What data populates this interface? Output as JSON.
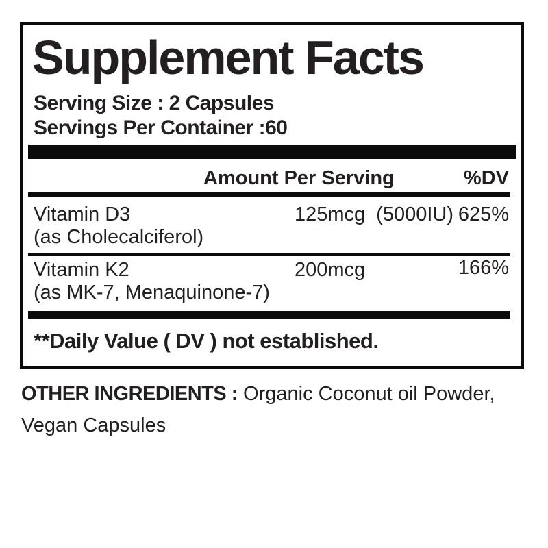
{
  "panel": {
    "title": "Supplement Facts",
    "serving_size": "Serving Size : 2 Capsules",
    "servings_per_container": "Servings Per Container :60",
    "columns": {
      "amount": "Amount Per Serving",
      "dv": "%DV"
    },
    "rows": [
      {
        "name": "Vitamin D3",
        "name_detail": "(as Cholecalciferol)",
        "amount": "125mcg",
        "amount_alt": "(5000IU)",
        "dv": "625%"
      },
      {
        "name": "Vitamin K2",
        "name_detail": "(as MK-7, Menaquinone-7)",
        "amount": "200mcg",
        "amount_alt": "",
        "dv": "166%"
      }
    ],
    "footnote": "**Daily Value ( DV ) not established."
  },
  "other_ingredients": {
    "label": "OTHER INGREDIENTS :",
    "items_line1": "Organic Coconut oil Powder,",
    "items_line2": "Vegan Capsules"
  },
  "colors": {
    "text": "#231f20",
    "rule": "#0b0b0b",
    "background": "#ffffff"
  }
}
